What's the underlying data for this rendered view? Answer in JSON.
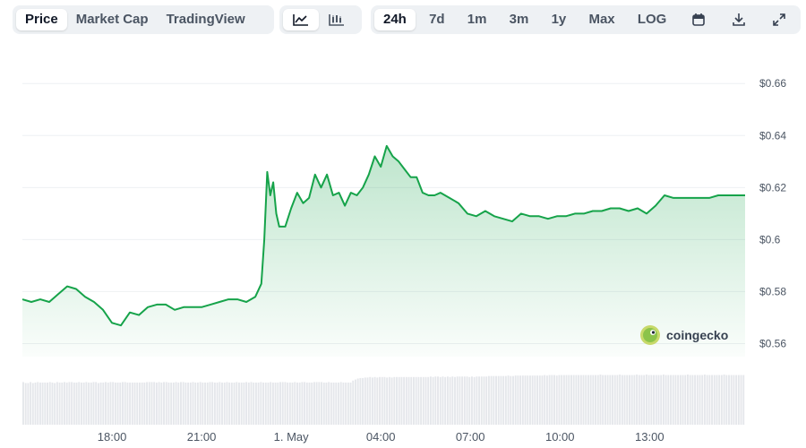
{
  "toolbar": {
    "metric_tabs": [
      {
        "label": "Price",
        "active": true
      },
      {
        "label": "Market Cap",
        "active": false
      },
      {
        "label": "TradingView",
        "active": false
      }
    ],
    "chart_type_icons": [
      {
        "icon": "line-chart-icon",
        "active": true
      },
      {
        "icon": "candlestick-chart-icon",
        "active": false
      }
    ],
    "ranges": [
      {
        "label": "24h",
        "active": true
      },
      {
        "label": "7d",
        "active": false
      },
      {
        "label": "1m",
        "active": false
      },
      {
        "label": "3m",
        "active": false
      },
      {
        "label": "1y",
        "active": false
      },
      {
        "label": "Max",
        "active": false
      },
      {
        "label": "LOG",
        "active": false
      }
    ],
    "action_icons": [
      "calendar-icon",
      "download-icon",
      "expand-icon"
    ]
  },
  "watermark": {
    "text": "coingecko",
    "icon": "gecko-logo-icon"
  },
  "colors": {
    "line": "#16a34a",
    "volume": "#e5e7eb",
    "grid": "#eef0f3"
  },
  "chart_data": {
    "type": "area",
    "title": "",
    "xlabel": "",
    "ylabel": "",
    "ylim": [
      0.555,
      0.668
    ],
    "y_ticks": [
      "$0.66",
      "$0.64",
      "$0.62",
      "$0.6",
      "$0.58",
      "$0.56"
    ],
    "y_tick_values": [
      0.66,
      0.64,
      0.62,
      0.6,
      0.58,
      0.56
    ],
    "x_ticks": [
      "18:00",
      "21:00",
      "1. May",
      "04:00",
      "07:00",
      "10:00",
      "13:00"
    ],
    "x_tick_hours": [
      3,
      6,
      9,
      12,
      15,
      18,
      21
    ],
    "x_hours": [
      0,
      0.3,
      0.6,
      0.9,
      1.2,
      1.5,
      1.8,
      2.1,
      2.4,
      2.7,
      3.0,
      3.3,
      3.6,
      3.9,
      4.2,
      4.5,
      4.8,
      5.1,
      5.4,
      5.7,
      6.0,
      6.3,
      6.6,
      6.9,
      7.2,
      7.5,
      7.8,
      8.0,
      8.1,
      8.2,
      8.3,
      8.4,
      8.5,
      8.6,
      8.8,
      9.0,
      9.2,
      9.4,
      9.6,
      9.8,
      10.0,
      10.2,
      10.4,
      10.6,
      10.8,
      11.0,
      11.2,
      11.4,
      11.6,
      11.8,
      12.0,
      12.2,
      12.4,
      12.6,
      12.8,
      13.0,
      13.2,
      13.4,
      13.6,
      13.8,
      14.0,
      14.3,
      14.6,
      14.9,
      15.2,
      15.5,
      15.8,
      16.1,
      16.4,
      16.7,
      17.0,
      17.3,
      17.6,
      17.9,
      18.2,
      18.5,
      18.8,
      19.1,
      19.4,
      19.7,
      20.0,
      20.3,
      20.6,
      20.9,
      21.2,
      21.5,
      21.8,
      22.1,
      22.4,
      22.7,
      23.0,
      23.3,
      23.6,
      23.9,
      24.0,
      24.2
    ],
    "values": [
      0.577,
      0.576,
      0.577,
      0.576,
      0.579,
      0.582,
      0.581,
      0.578,
      0.576,
      0.573,
      0.568,
      0.567,
      0.572,
      0.571,
      0.574,
      0.575,
      0.575,
      0.573,
      0.574,
      0.574,
      0.574,
      0.575,
      0.576,
      0.577,
      0.577,
      0.576,
      0.578,
      0.583,
      0.6,
      0.626,
      0.617,
      0.622,
      0.61,
      0.605,
      0.605,
      0.612,
      0.618,
      0.614,
      0.616,
      0.625,
      0.62,
      0.625,
      0.617,
      0.618,
      0.613,
      0.618,
      0.617,
      0.62,
      0.625,
      0.632,
      0.628,
      0.636,
      0.632,
      0.63,
      0.627,
      0.624,
      0.624,
      0.618,
      0.617,
      0.617,
      0.618,
      0.616,
      0.614,
      0.61,
      0.609,
      0.611,
      0.609,
      0.608,
      0.607,
      0.61,
      0.609,
      0.609,
      0.608,
      0.609,
      0.609,
      0.61,
      0.61,
      0.611,
      0.611,
      0.612,
      0.612,
      0.611,
      0.612,
      0.61,
      0.613,
      0.617,
      0.616,
      0.616,
      0.616,
      0.616,
      0.616,
      0.617,
      0.617,
      0.617,
      0.617,
      0.617
    ],
    "volume_levels": [
      0.85,
      0.83,
      0.83,
      0.85,
      0.83,
      0.84,
      0.85,
      0.84,
      0.84,
      0.84,
      0.84,
      0.85,
      0.84,
      0.83,
      0.85,
      0.84,
      0.84,
      0.85,
      0.84,
      0.85,
      0.85,
      0.84,
      0.84,
      0.85,
      0.84,
      0.84,
      0.85,
      0.84,
      0.84,
      0.85,
      0.85,
      0.83,
      0.84,
      0.84,
      0.85,
      0.84,
      0.85,
      0.85,
      0.84,
      0.84,
      0.84,
      0.85,
      0.85,
      0.84,
      0.84,
      0.84,
      0.84,
      0.84,
      0.84,
      0.84,
      0.84,
      0.85,
      0.85,
      0.85,
      0.85,
      0.84,
      0.85,
      0.84,
      0.85,
      0.85,
      0.84,
      0.84,
      0.84,
      0.85,
      0.84,
      0.85,
      0.85,
      0.84,
      0.84,
      0.84,
      0.85,
      0.84,
      0.84,
      0.85,
      0.84,
      0.84,
      0.84,
      0.85,
      0.85,
      0.84,
      0.84,
      0.85,
      0.84,
      0.84,
      0.85,
      0.84,
      0.84,
      0.84,
      0.85,
      0.84,
      0.84,
      0.84,
      0.85,
      0.84,
      0.85,
      0.84,
      0.84,
      0.84,
      0.85,
      0.84,
      0.84,
      0.84,
      0.85,
      0.84,
      0.84,
      0.84,
      0.85,
      0.85,
      0.85,
      0.84,
      0.84,
      0.84,
      0.85,
      0.84,
      0.84,
      0.85,
      0.85,
      0.84,
      0.84,
      0.84,
      0.85,
      0.85,
      0.85,
      0.85,
      0.84,
      0.84,
      0.85,
      0.84,
      0.84,
      0.84,
      0.84,
      0.85,
      0.84,
      0.84,
      0.84,
      0.84,
      0.88,
      0.9,
      0.92,
      0.93,
      0.93,
      0.94,
      0.94,
      0.95,
      0.94,
      0.95,
      0.94,
      0.95,
      0.95,
      0.95,
      0.94,
      0.95,
      0.94,
      0.95,
      0.95,
      0.95,
      0.95,
      0.95,
      0.95,
      0.95,
      0.95,
      0.95,
      0.95,
      0.95,
      0.95,
      0.95,
      0.95,
      0.95,
      0.96,
      0.95,
      0.96,
      0.96,
      0.95,
      0.96,
      0.95,
      0.96,
      0.95,
      0.96,
      0.95,
      0.96,
      0.96,
      0.96,
      0.96,
      0.96,
      0.95,
      0.96,
      0.95,
      0.96,
      0.96,
      0.96,
      0.96,
      0.96,
      0.97,
      0.97,
      0.97,
      0.97,
      0.97,
      0.97,
      0.97,
      0.97,
      0.98,
      0.97,
      0.97,
      0.98,
      0.98,
      0.98,
      0.98,
      0.98,
      0.98,
      0.98,
      0.98,
      0.98,
      0.98,
      0.98,
      0.98,
      0.99,
      0.98,
      0.99,
      0.99,
      0.99,
      0.98,
      0.99,
      0.99,
      0.99,
      0.99,
      0.99,
      0.99,
      0.99,
      0.99,
      0.99,
      0.99,
      0.99,
      0.99,
      0.99,
      0.99,
      0.99,
      0.99,
      0.99,
      1.0,
      0.99,
      0.99,
      0.99,
      0.99,
      0.99,
      0.99,
      0.99,
      1.0,
      0.99,
      0.99,
      0.99,
      0.99,
      0.99,
      0.99,
      1.0,
      0.99,
      0.99,
      0.99,
      1.0,
      0.99,
      0.99,
      0.99,
      0.99,
      0.99,
      0.99,
      1.0,
      0.99,
      0.99,
      0.99,
      0.99,
      0.99,
      0.99,
      0.99,
      0.99,
      0.99,
      1.0,
      0.99,
      0.99,
      0.99,
      0.99,
      0.99,
      0.99,
      1.0,
      0.99,
      0.99,
      0.99,
      0.99,
      0.99,
      0.99,
      0.99,
      1.0,
      0.99,
      0.99,
      0.99,
      0.99,
      0.99,
      0.99,
      0.99,
      0.99
    ]
  }
}
